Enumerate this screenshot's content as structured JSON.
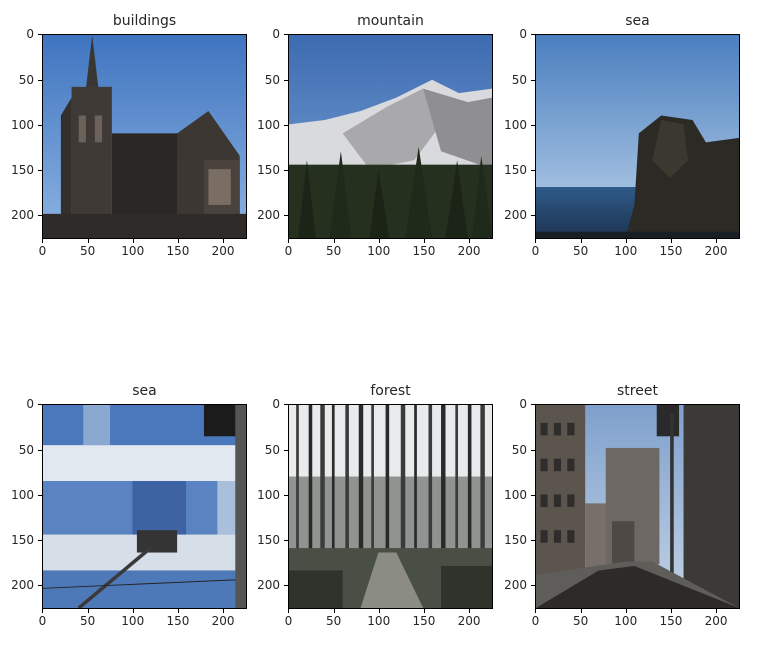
{
  "panels": [
    {
      "title": "buildings",
      "scene": "buildings"
    },
    {
      "title": "mountain",
      "scene": "mountain"
    },
    {
      "title": "sea",
      "scene": "sea"
    },
    {
      "title": "sea",
      "scene": "facade"
    },
    {
      "title": "forest",
      "scene": "forest"
    },
    {
      "title": "street",
      "scene": "street"
    }
  ],
  "y_ticks": [
    "0",
    "50",
    "100",
    "150",
    "200"
  ],
  "x_ticks": [
    "0",
    "50",
    "100",
    "150",
    "200"
  ]
}
